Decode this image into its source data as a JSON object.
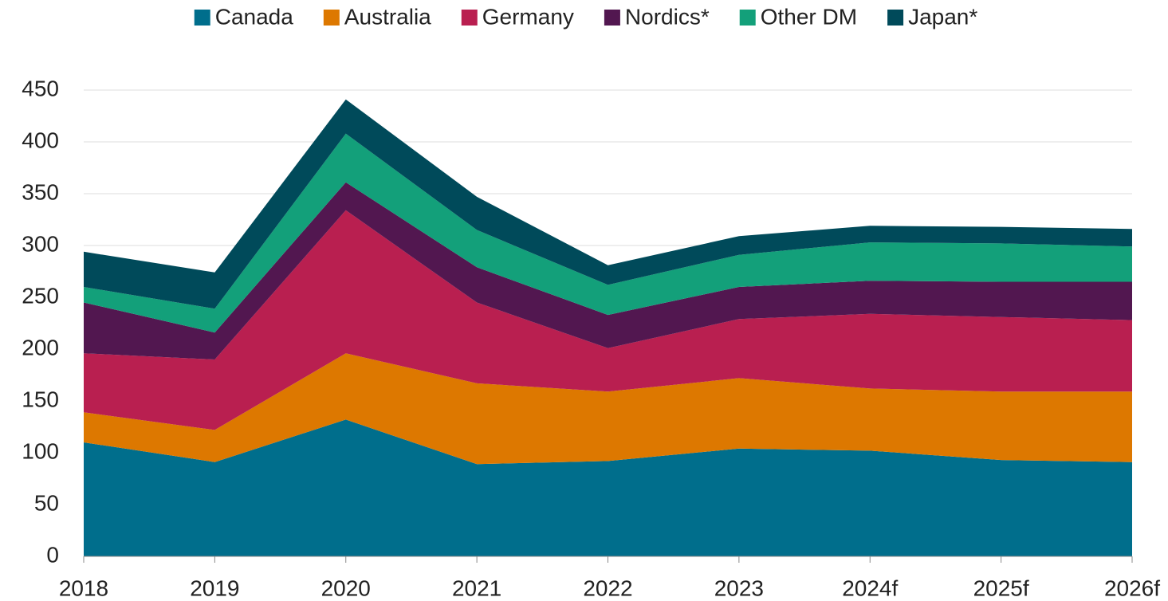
{
  "chart_data": {
    "type": "stacked_area",
    "categories": [
      "2018",
      "2019",
      "2020",
      "2021",
      "2022",
      "2023",
      "2024f",
      "2025f",
      "2026f"
    ],
    "series": [
      {
        "name": "Canada",
        "color": "#006e8c",
        "values": [
          110,
          91,
          132,
          89,
          92,
          104,
          102,
          93,
          91
        ]
      },
      {
        "name": "Australia",
        "color": "#dd7800",
        "values": [
          29,
          31,
          64,
          78,
          67,
          68,
          60,
          66,
          68
        ]
      },
      {
        "name": "Germany",
        "color": "#b91f50",
        "values": [
          57,
          68,
          138,
          78,
          42,
          57,
          72,
          72,
          69
        ]
      },
      {
        "name": "Nordics*",
        "color": "#521750",
        "values": [
          49,
          26,
          27,
          34,
          32,
          31,
          32,
          34,
          37
        ]
      },
      {
        "name": "Other DM",
        "color": "#13a07a",
        "values": [
          15,
          23,
          47,
          36,
          29,
          31,
          37,
          37,
          34
        ]
      },
      {
        "name": "Japan*",
        "color": "#004a5a",
        "values": [
          34,
          35,
          33,
          32,
          19,
          18,
          16,
          16,
          17
        ]
      }
    ],
    "ylim": [
      0,
      450
    ],
    "yticks": [
      0,
      50,
      100,
      150,
      200,
      250,
      300,
      350,
      400,
      450
    ],
    "grid": true,
    "legend": "top"
  }
}
